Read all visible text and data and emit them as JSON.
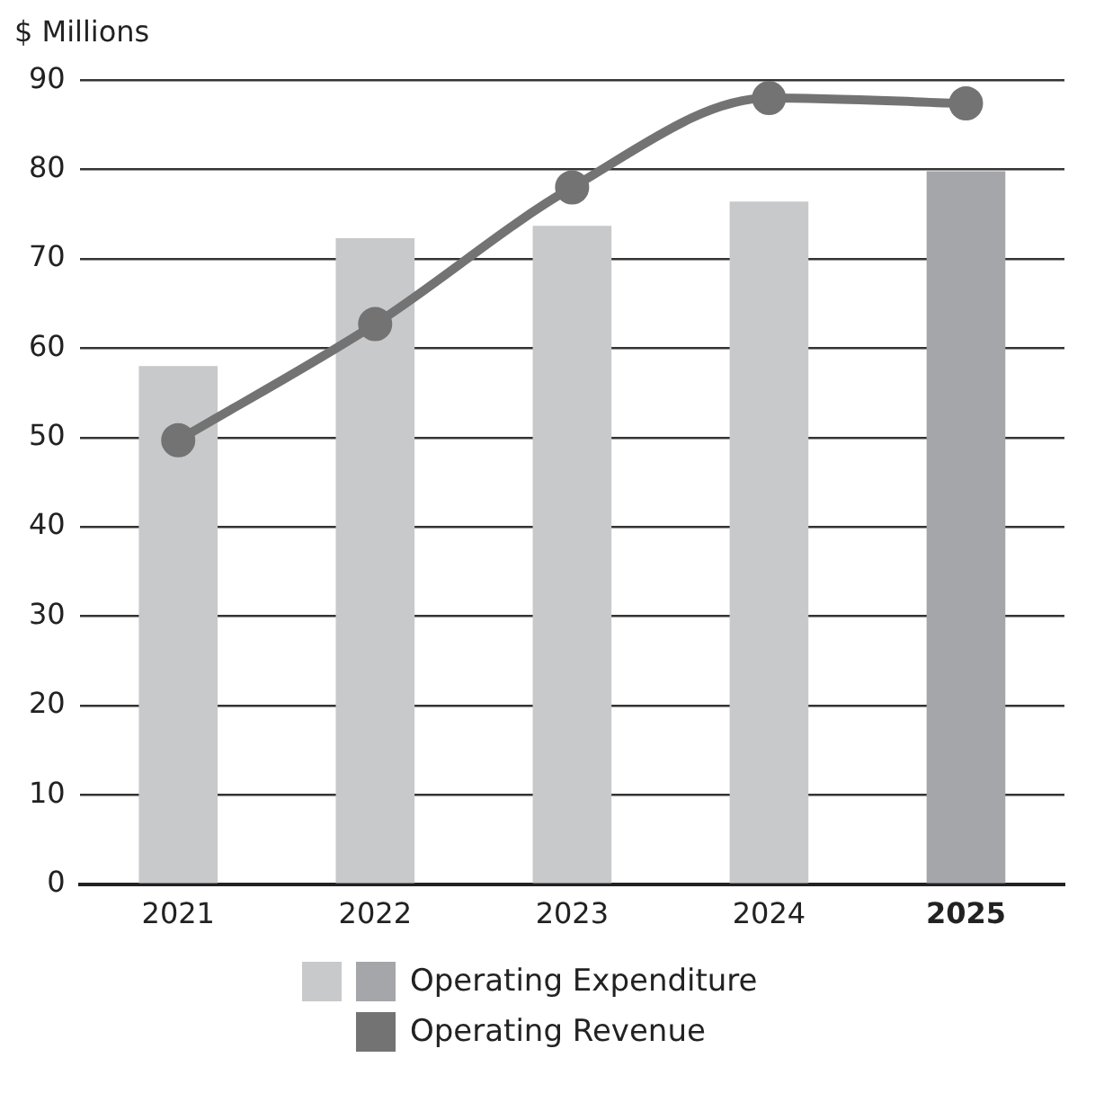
{
  "chart_data": {
    "type": "bar",
    "ylabel": "$ Millions",
    "categories": [
      "2021",
      "2022",
      "2023",
      "2024",
      "2025"
    ],
    "series": [
      {
        "name": "Operating Expenditure",
        "color": "#c8c9cb",
        "colors": [
          "#c8c9cb",
          "#c8c9cb",
          "#c8c9cb",
          "#c8c9cb",
          "#a5a6a9"
        ],
        "values": [
          58,
          72.3,
          73.7,
          76.4,
          79.8
        ]
      },
      {
        "name": "Operating Revenue",
        "type": "line",
        "color": "#737373",
        "values": [
          49.7,
          62.7,
          78,
          88,
          87.4
        ]
      }
    ],
    "ylim": [
      0,
      90
    ],
    "yticks": [
      0,
      10,
      20,
      30,
      40,
      50,
      60,
      70,
      80,
      90
    ],
    "grid": "y",
    "legend": "bottom",
    "marker": "circle",
    "line_style": "solid"
  }
}
